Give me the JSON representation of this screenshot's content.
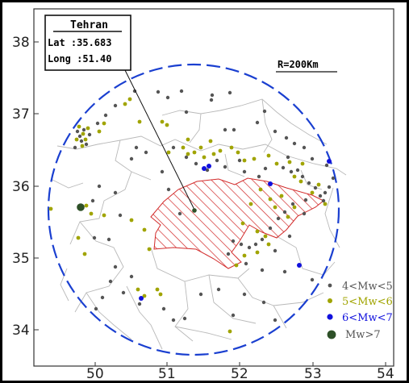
{
  "axes": {
    "x_ticks": [
      "50",
      "51",
      "52",
      "53",
      "54"
    ],
    "y_ticks": [
      "38",
      "37",
      "36",
      "35",
      "34"
    ]
  },
  "callout": {
    "title": "Tehran",
    "lat": "Lat :35.683",
    "long": "Long :51.40"
  },
  "radius_label": "R=200Km",
  "legend": [
    {
      "label": "4<Mw<5",
      "color": "#555555"
    },
    {
      "label": "5<Mw<6",
      "color": "#a0a400"
    },
    {
      "label": "6<Mw<7",
      "color": "#1111dd"
    },
    {
      "label": "Mw>7",
      "color": "#2e5028"
    }
  ],
  "colors": {
    "circle": "#1a3fd0",
    "hatch": "#d22a2a",
    "border": "#b9b9b9",
    "tehran": "#2e5028"
  }
}
